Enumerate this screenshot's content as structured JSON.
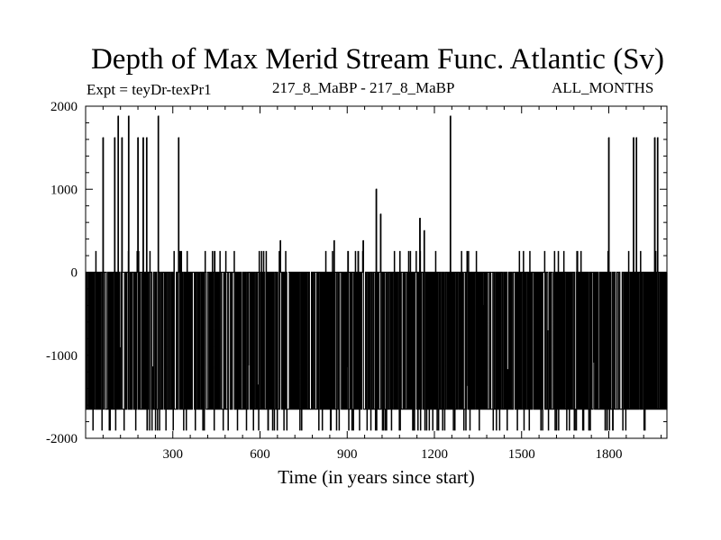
{
  "chart_data": {
    "type": "line",
    "title": "Depth of Max Merid Stream Func. Atlantic (Sv)",
    "experiment_label": "Expt = teyDr-texPr1",
    "run_label": "217_8_MaBP - 217_8_MaBP",
    "months_label": "ALL_MONTHS",
    "xlabel": "Time (in years since start)",
    "ylabel": "",
    "xlim": [
      0,
      2000
    ],
    "ylim": [
      -2000,
      2000
    ],
    "x_ticks": [
      300,
      600,
      900,
      1200,
      1500,
      1800
    ],
    "x_tick_labels": [
      "300",
      "600",
      "900",
      "1200",
      "1500",
      "1800"
    ],
    "y_ticks": [
      -2000,
      -1000,
      0,
      1000,
      2000
    ],
    "y_tick_labels": [
      "-2000",
      "-1000",
      "0",
      "1000",
      "2000"
    ],
    "reference_line": 0,
    "series": [
      {
        "name": "Depth of Max Merid Stream Func.",
        "baseline_levels": [
          0,
          -1650,
          -1900
        ],
        "spikes": [
          {
            "x": 60,
            "y": 1620
          },
          {
            "x": 100,
            "y": 1620
          },
          {
            "x": 112,
            "y": 1880
          },
          {
            "x": 125,
            "y": 1620
          },
          {
            "x": 148,
            "y": 1880
          },
          {
            "x": 180,
            "y": 1620
          },
          {
            "x": 198,
            "y": 1620
          },
          {
            "x": 210,
            "y": 1620
          },
          {
            "x": 250,
            "y": 1880
          },
          {
            "x": 320,
            "y": 1620
          },
          {
            "x": 670,
            "y": 380
          },
          {
            "x": 855,
            "y": 380
          },
          {
            "x": 955,
            "y": 380
          },
          {
            "x": 1000,
            "y": 1000
          },
          {
            "x": 1015,
            "y": 700
          },
          {
            "x": 1150,
            "y": 650
          },
          {
            "x": 1165,
            "y": 500
          },
          {
            "x": 1255,
            "y": 1880
          },
          {
            "x": 1800,
            "y": 1620
          },
          {
            "x": 1885,
            "y": 1620
          },
          {
            "x": 1895,
            "y": 1620
          },
          {
            "x": 1958,
            "y": 1620
          },
          {
            "x": 1968,
            "y": 1620
          }
        ]
      }
    ]
  }
}
